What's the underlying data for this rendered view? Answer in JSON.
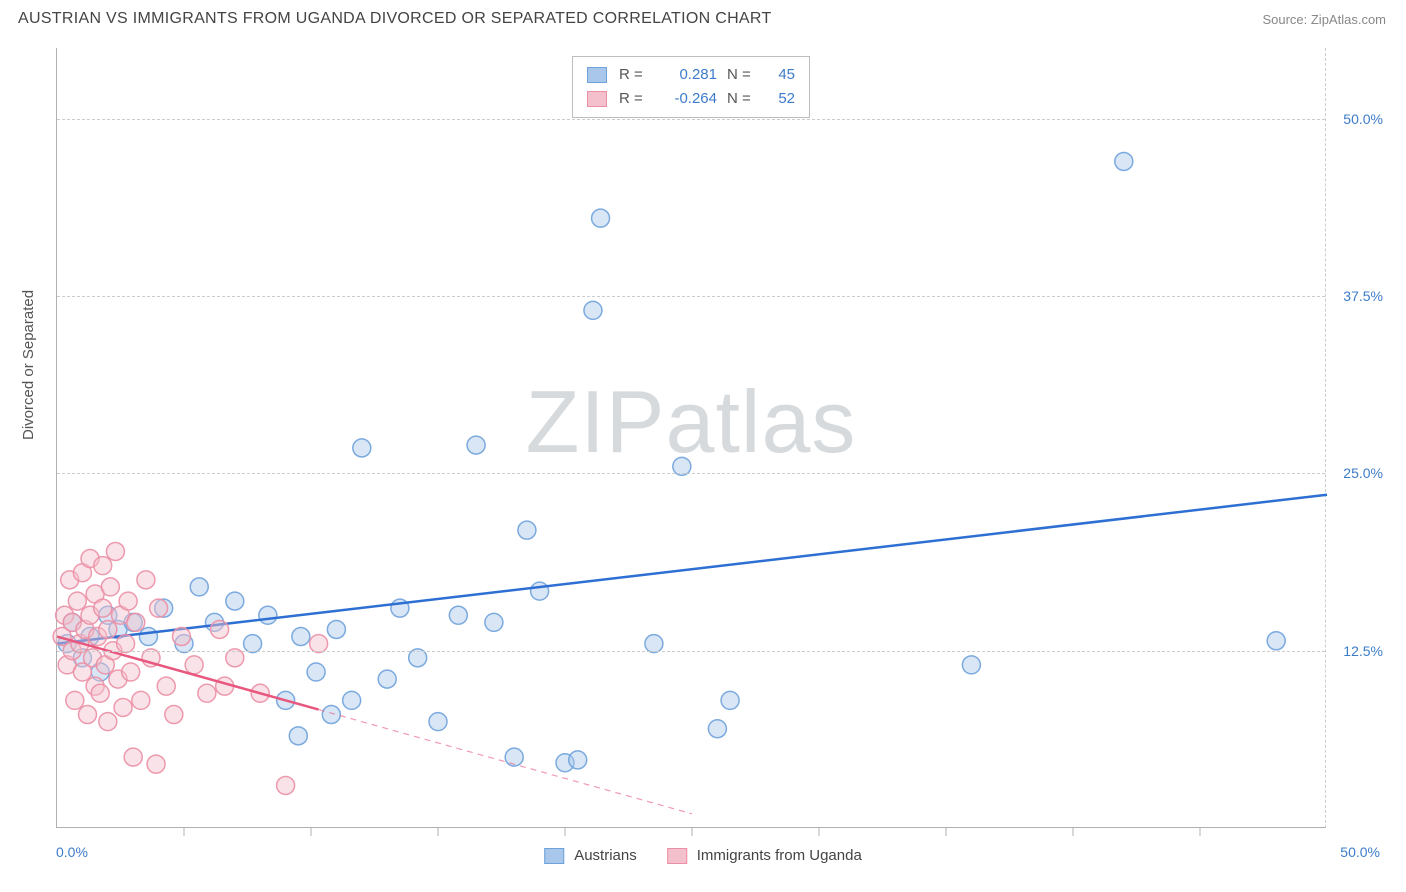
{
  "header": {
    "title": "AUSTRIAN VS IMMIGRANTS FROM UGANDA DIVORCED OR SEPARATED CORRELATION CHART",
    "source": "Source: ZipAtlas.com"
  },
  "watermark": {
    "part1": "ZIP",
    "part2": "atlas"
  },
  "chart": {
    "type": "scatter",
    "y_axis_title": "Divorced or Separated",
    "background_color": "#ffffff",
    "grid_color": "#cccccc",
    "axis_color": "#b0b0b0",
    "tick_label_color": "#3d7cc9",
    "xlim": [
      0,
      50
    ],
    "ylim": [
      0,
      55
    ],
    "x_origin_label": "0.0%",
    "x_end_label": "50.0%",
    "y_ticks": [
      {
        "v": 12.5,
        "label": "12.5%"
      },
      {
        "v": 25.0,
        "label": "25.0%"
      },
      {
        "v": 37.5,
        "label": "37.5%"
      },
      {
        "v": 50.0,
        "label": "50.0%"
      }
    ],
    "x_tick_marks": [
      5,
      10,
      15,
      20,
      25,
      30,
      35,
      40,
      45
    ],
    "marker_radius": 9,
    "series": [
      {
        "name": "Austrians",
        "fill": "#a9c7ea",
        "stroke": "#6fa2db",
        "trend_color": "#2d6fd2",
        "R": "0.281",
        "N": "45",
        "trend": {
          "x1": 0,
          "y1": 13.0,
          "x2": 50,
          "y2": 23.5,
          "solid_until_x": 50
        },
        "points": [
          [
            0.4,
            13.0
          ],
          [
            0.6,
            14.5
          ],
          [
            1.0,
            12.0
          ],
          [
            1.3,
            13.5
          ],
          [
            1.7,
            11.0
          ],
          [
            2.0,
            15.0
          ],
          [
            2.4,
            14.0
          ],
          [
            3.0,
            14.5
          ],
          [
            3.6,
            13.5
          ],
          [
            4.2,
            15.5
          ],
          [
            5.0,
            13.0
          ],
          [
            5.6,
            17.0
          ],
          [
            6.2,
            14.5
          ],
          [
            7.0,
            16.0
          ],
          [
            7.7,
            13.0
          ],
          [
            8.3,
            15.0
          ],
          [
            9.0,
            9.0
          ],
          [
            9.5,
            6.5
          ],
          [
            9.6,
            13.5
          ],
          [
            10.2,
            11.0
          ],
          [
            10.8,
            8.0
          ],
          [
            11.0,
            14.0
          ],
          [
            11.6,
            9.0
          ],
          [
            12.0,
            26.8
          ],
          [
            13.0,
            10.5
          ],
          [
            13.5,
            15.5
          ],
          [
            14.2,
            12.0
          ],
          [
            15.0,
            7.5
          ],
          [
            15.8,
            15.0
          ],
          [
            16.5,
            27.0
          ],
          [
            17.2,
            14.5
          ],
          [
            18.0,
            5.0
          ],
          [
            18.5,
            21.0
          ],
          [
            19.0,
            16.7
          ],
          [
            20.0,
            4.6
          ],
          [
            20.5,
            4.8
          ],
          [
            21.1,
            36.5
          ],
          [
            21.4,
            43.0
          ],
          [
            23.5,
            13.0
          ],
          [
            24.6,
            25.5
          ],
          [
            26.0,
            7.0
          ],
          [
            26.5,
            9.0
          ],
          [
            36.0,
            11.5
          ],
          [
            42.0,
            47.0
          ],
          [
            48.0,
            13.2
          ]
        ]
      },
      {
        "name": "Immigrants from Uganda",
        "fill": "#f4c0cb",
        "stroke": "#eb8fa5",
        "trend_color": "#e8577e",
        "R": "-0.264",
        "N": "52",
        "trend": {
          "x1": 0,
          "y1": 13.5,
          "x2": 25,
          "y2": 1.0,
          "solid_until_x": 10.3
        },
        "points": [
          [
            0.2,
            13.5
          ],
          [
            0.3,
            15.0
          ],
          [
            0.4,
            11.5
          ],
          [
            0.5,
            17.5
          ],
          [
            0.6,
            12.5
          ],
          [
            0.6,
            14.5
          ],
          [
            0.7,
            9.0
          ],
          [
            0.8,
            16.0
          ],
          [
            0.9,
            13.0
          ],
          [
            1.0,
            18.0
          ],
          [
            1.0,
            11.0
          ],
          [
            1.1,
            14.0
          ],
          [
            1.2,
            8.0
          ],
          [
            1.3,
            15.0
          ],
          [
            1.3,
            19.0
          ],
          [
            1.4,
            12.0
          ],
          [
            1.5,
            16.5
          ],
          [
            1.5,
            10.0
          ],
          [
            1.6,
            13.5
          ],
          [
            1.7,
            9.5
          ],
          [
            1.8,
            15.5
          ],
          [
            1.8,
            18.5
          ],
          [
            1.9,
            11.5
          ],
          [
            2.0,
            14.0
          ],
          [
            2.0,
            7.5
          ],
          [
            2.1,
            17.0
          ],
          [
            2.2,
            12.5
          ],
          [
            2.3,
            19.5
          ],
          [
            2.4,
            10.5
          ],
          [
            2.5,
            15.0
          ],
          [
            2.6,
            8.5
          ],
          [
            2.7,
            13.0
          ],
          [
            2.8,
            16.0
          ],
          [
            2.9,
            11.0
          ],
          [
            3.0,
            5.0
          ],
          [
            3.1,
            14.5
          ],
          [
            3.3,
            9.0
          ],
          [
            3.5,
            17.5
          ],
          [
            3.7,
            12.0
          ],
          [
            3.9,
            4.5
          ],
          [
            4.0,
            15.5
          ],
          [
            4.3,
            10.0
          ],
          [
            4.6,
            8.0
          ],
          [
            4.9,
            13.5
          ],
          [
            5.4,
            11.5
          ],
          [
            5.9,
            9.5
          ],
          [
            6.4,
            14.0
          ],
          [
            6.6,
            10.0
          ],
          [
            7.0,
            12.0
          ],
          [
            8.0,
            9.5
          ],
          [
            9.0,
            3.0
          ],
          [
            10.3,
            13.0
          ]
        ]
      }
    ]
  },
  "legend_top": {
    "r_label": "R =",
    "n_label": "N ="
  },
  "legend_bottom": {
    "items": [
      "Austrians",
      "Immigrants from Uganda"
    ]
  }
}
